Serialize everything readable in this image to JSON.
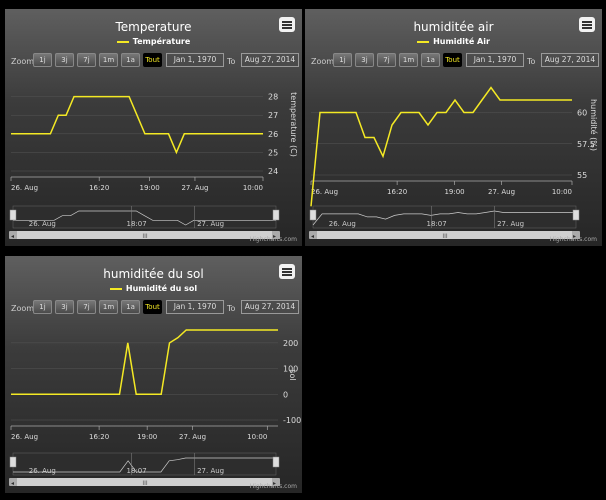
{
  "colors": {
    "series": "#f4e924",
    "navigator": "#cccccc"
  },
  "ui": {
    "zoom_label": "Zoom",
    "range_buttons": [
      "1j",
      "3j",
      "7j",
      "1m",
      "1a",
      "Tout"
    ],
    "selected_range": "Tout",
    "from_date": "Jan 1, 1970",
    "to_label": "To",
    "to_date": "Aug 27, 2014",
    "credit": "Highcharts.com",
    "menu_icon": "hamburger-menu-icon",
    "scrollbar_grip": "III"
  },
  "chart_data": [
    {
      "type": "line",
      "title": "Temperature",
      "series": [
        {
          "name": "Température",
          "values": [
            26,
            26,
            26,
            26,
            26,
            26,
            27,
            27,
            28,
            28,
            28,
            28,
            28,
            28,
            28,
            28,
            27,
            26,
            26,
            26,
            26,
            25,
            26,
            26,
            26,
            26,
            26,
            26,
            26,
            26,
            26,
            26,
            26
          ]
        }
      ],
      "x_ticks": [
        "26. Aug",
        "16:20",
        "19:00",
        "27. Aug",
        "10:00"
      ],
      "ylabel": "temperature (C)",
      "y_ticks": [
        "24",
        "25",
        "26",
        "27",
        "28"
      ],
      "navigator_labels": [
        "26. Aug",
        "18:07",
        "27. Aug"
      ]
    },
    {
      "type": "line",
      "title": "humiditée air",
      "series": [
        {
          "name": "Humidité Air",
          "values": [
            52.5,
            60,
            60,
            60,
            60,
            60,
            58,
            58,
            56.5,
            59,
            60,
            60,
            60,
            59,
            60,
            60,
            61,
            60,
            60,
            61,
            62,
            61,
            61,
            61,
            61,
            61,
            61,
            61,
            61,
            61
          ]
        }
      ],
      "x_ticks": [
        "26. Aug",
        "16:20",
        "19:00",
        "27. Aug",
        "10:00"
      ],
      "ylabel": "humidité (%)",
      "y_ticks": [
        "55",
        "57.5",
        "60"
      ],
      "navigator_labels": [
        "26. Aug",
        "18:07",
        "27. Aug"
      ]
    },
    {
      "type": "line",
      "title": "humiditée du sol",
      "series": [
        {
          "name": "Humidité du sol",
          "values": [
            0,
            0,
            0,
            0,
            0,
            0,
            0,
            0,
            0,
            0,
            0,
            0,
            0,
            0,
            200,
            0,
            0,
            0,
            0,
            200,
            220,
            250,
            250,
            250,
            250,
            250,
            250,
            250,
            250,
            250,
            250,
            250,
            250
          ]
        }
      ],
      "x_ticks": [
        "26. Aug",
        "16:20",
        "19:00",
        "27. Aug",
        "10:00"
      ],
      "ylabel": "sol",
      "y_ticks": [
        "-100",
        "0",
        "100",
        "200"
      ],
      "navigator_labels": [
        "26. Aug",
        "18:07",
        "27. Aug"
      ]
    }
  ]
}
